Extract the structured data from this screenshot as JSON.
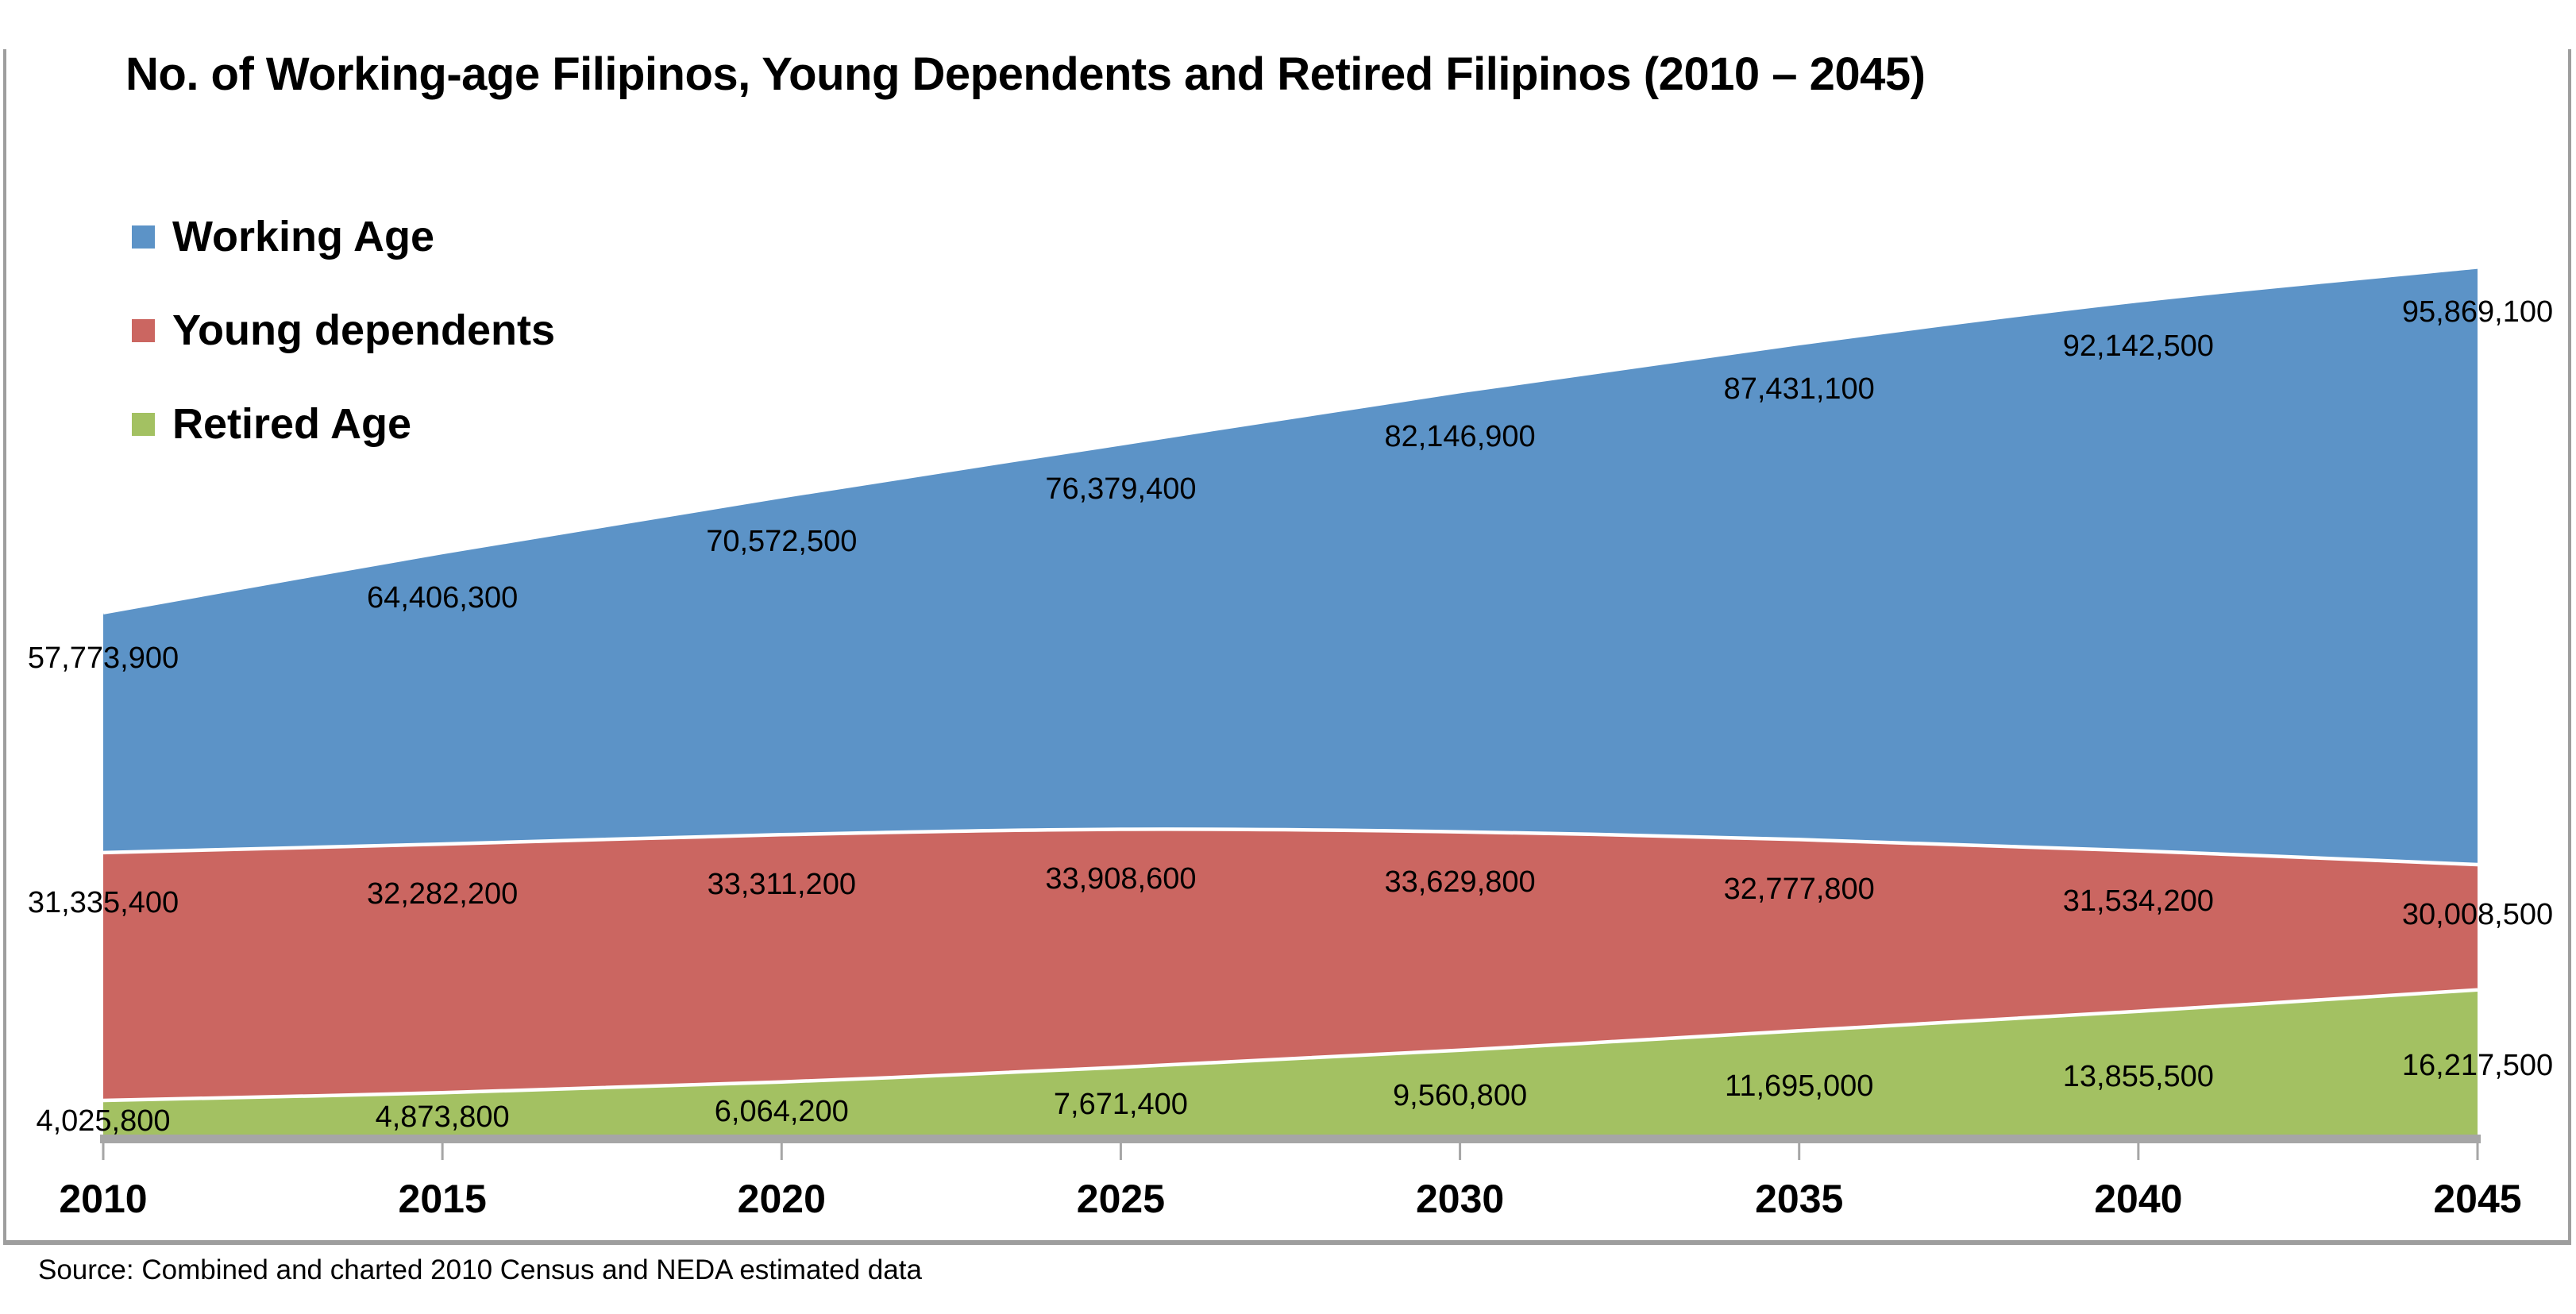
{
  "title": "No. of Working-age Filipinos, Young Dependents and Retired Filipinos (2010 – 2045)",
  "source_note": "Source: Combined and charted 2010 Census and NEDA estimated data",
  "colors": {
    "working_age": "#5C93C7",
    "young_dependents": "#CB6661",
    "retired_age": "#A3C162",
    "axis": "#A6A6A6",
    "frame_border": "#9E9E9E",
    "area_separator": "#FFFFFF",
    "text": "#000000"
  },
  "chart_data": {
    "type": "area",
    "mode": "overlapping",
    "title": "No. of Working-age Filipinos, Young Dependents and Retired Filipinos (2010 – 2045)",
    "x": [
      2010,
      2015,
      2020,
      2025,
      2030,
      2035,
      2040,
      2045
    ],
    "series": [
      {
        "name": "Working Age",
        "color": "#5C93C7",
        "values": [
          57773900,
          64406300,
          70572500,
          76379400,
          82146900,
          87431100,
          92142500,
          95869100
        ]
      },
      {
        "name": "Young dependents",
        "color": "#CB6661",
        "values": [
          31335400,
          32282200,
          33311200,
          33908600,
          33629800,
          32777800,
          31534200,
          30008500
        ]
      },
      {
        "name": "Retired Age",
        "color": "#A3C162",
        "values": [
          4025800,
          4873800,
          6064200,
          7671400,
          9560800,
          11695000,
          13855500,
          16217500
        ]
      }
    ],
    "xlabel": "",
    "ylabel": "",
    "y_axis_visible": false,
    "grid": false,
    "data_labels": true,
    "number_format": "#,##0",
    "legend_position": "top-left",
    "legend_entries": [
      "Working Age",
      "Young dependents",
      "Retired Age"
    ]
  }
}
